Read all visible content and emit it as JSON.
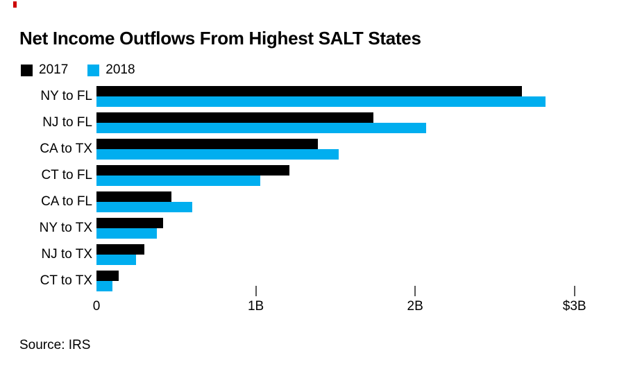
{
  "brand": {
    "red_mark_color": "#cc0000"
  },
  "source": "Source: IRS",
  "legend": {
    "items": [
      {
        "label": "2017",
        "color": "#000000"
      },
      {
        "label": "2018",
        "color": "#00aeef"
      }
    ]
  },
  "chart_data": {
    "type": "bar",
    "orientation": "horizontal",
    "title": "Net Income Outflows From Highest SALT States",
    "categories": [
      "NY to FL",
      "NJ to FL",
      "CA to TX",
      "CT to FL",
      "CA to FL",
      "NY to TX",
      "NJ to TX",
      "CT to TX"
    ],
    "series": [
      {
        "name": "2017",
        "color": "#000000",
        "values": [
          2.67,
          1.74,
          1.39,
          1.21,
          0.47,
          0.42,
          0.3,
          0.14
        ]
      },
      {
        "name": "2018",
        "color": "#00aeef",
        "values": [
          2.82,
          2.07,
          1.52,
          1.03,
          0.6,
          0.38,
          0.25,
          0.1
        ]
      }
    ],
    "x_axis": {
      "ticks": [
        {
          "value": 0,
          "label": "0"
        },
        {
          "value": 1,
          "label": "1B"
        },
        {
          "value": 2,
          "label": "2B"
        },
        {
          "value": 3,
          "label": "$3B"
        }
      ]
    },
    "xlim": [
      0,
      3.267
    ],
    "unit_note": "values in billions of dollars (axis labeled 0, 1B, 2B, $3B)",
    "grid": false,
    "legend_position": "top-left"
  }
}
